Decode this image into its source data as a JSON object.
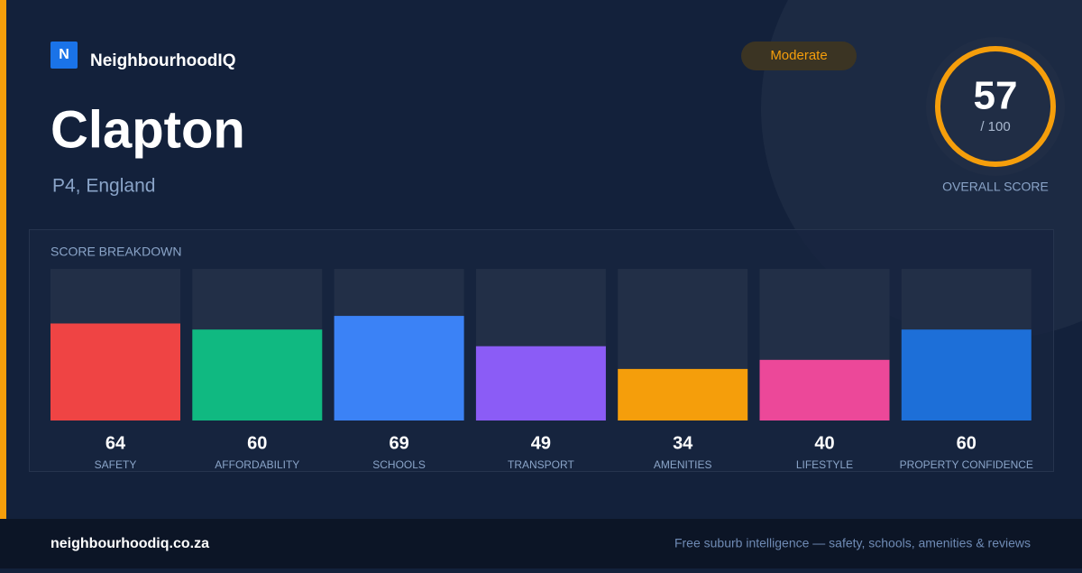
{
  "brand": "NeighbourhoodIQ",
  "logo_letter": "N",
  "title": "Clapton",
  "subtitle": "P4, England",
  "badge": "Moderate",
  "score": {
    "value": 57,
    "max": {
      "value": 100,
      "label": "/ 100"
    },
    "label": "OVERALL SCORE",
    "color": "#f59e0b"
  },
  "breakdown": {
    "title": "SCORE BREAKDOWN",
    "ylim": [
      0,
      100
    ],
    "items": [
      {
        "label": "SAFETY",
        "value": 64,
        "color": "#ef4444"
      },
      {
        "label": "AFFORDABILITY",
        "value": 60,
        "color": "#10b981"
      },
      {
        "label": "SCHOOLS",
        "value": 69,
        "color": "#3b82f6"
      },
      {
        "label": "TRANSPORT",
        "value": 49,
        "color": "#8b5cf6"
      },
      {
        "label": "AMENITIES",
        "value": 34,
        "color": "#f59e0b"
      },
      {
        "label": "LIFESTYLE",
        "value": 40,
        "color": "#ec4899"
      },
      {
        "label": "PROPERTY CONFIDENCE",
        "value": 60,
        "color": "#1d6fd8"
      }
    ]
  },
  "footer": {
    "site": "neighbourhoodiq.co.za",
    "tagline": "Free suburb intelligence — safety, schools, amenities & reviews"
  }
}
